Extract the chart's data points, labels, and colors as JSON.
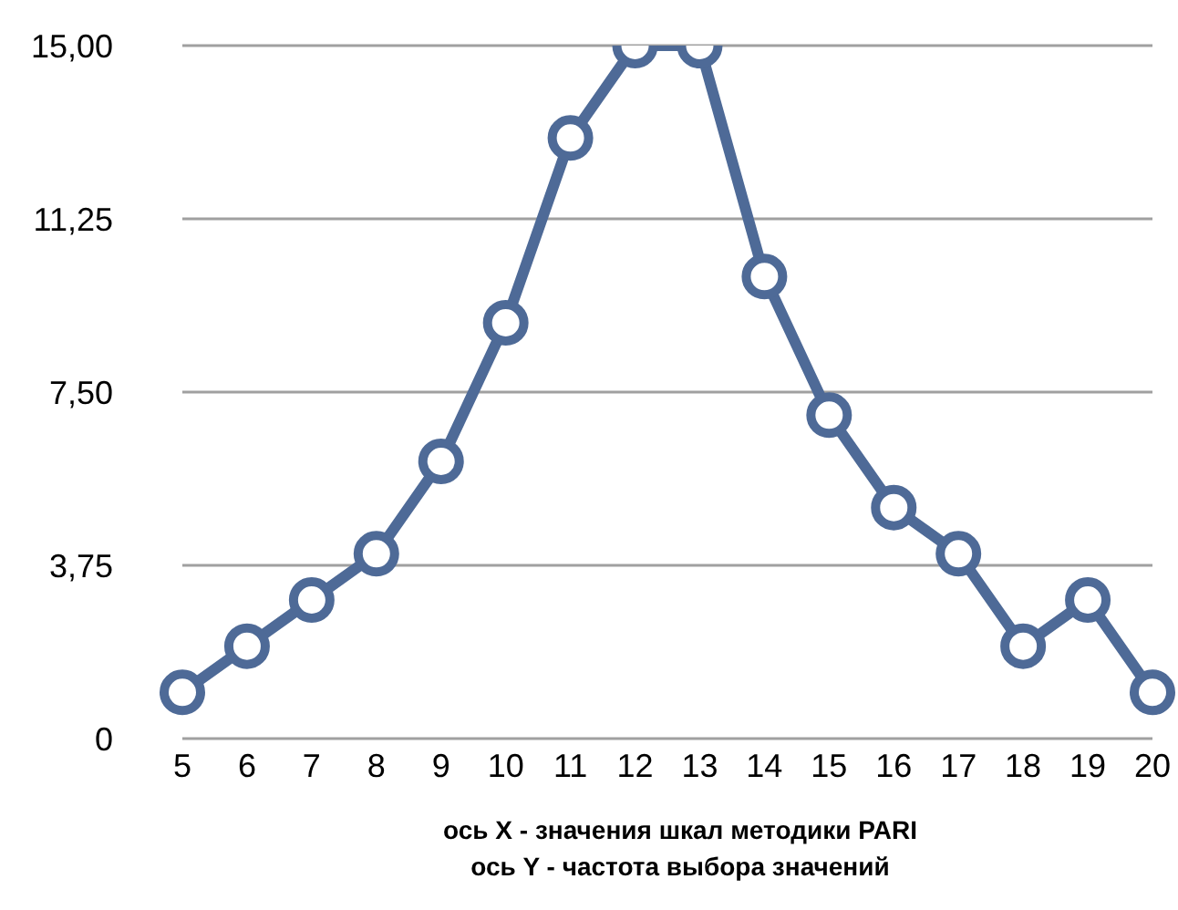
{
  "chart_data": {
    "type": "line",
    "categories": [
      "5",
      "6",
      "7",
      "8",
      "9",
      "10",
      "11",
      "12",
      "13",
      "14",
      "15",
      "16",
      "17",
      "18",
      "19",
      "20"
    ],
    "series": [
      {
        "color": "#4e6a97",
        "values": [
          1,
          2,
          3,
          4,
          6,
          9,
          13,
          15,
          15,
          10,
          7,
          5,
          4,
          2,
          3,
          1
        ]
      }
    ],
    "ylim": [
      0,
      15
    ],
    "yticks": [
      0,
      {
        "value": 3.75,
        "label": "3,75"
      },
      {
        "value": 7.5,
        "label": "7,50"
      },
      {
        "value": 11.25,
        "label": "11,25"
      },
      {
        "value": 15,
        "label": "15,00"
      }
    ],
    "grid": "y",
    "marker": "circle",
    "line_style": "solid",
    "legend": false,
    "annotations": [
      "ось X - значения шкал методики PARI",
      "ось Y - частота выбора значений"
    ]
  }
}
